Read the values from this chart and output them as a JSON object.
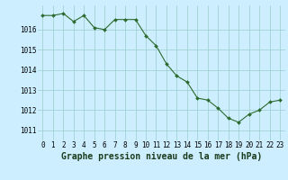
{
  "x": [
    0,
    1,
    2,
    3,
    4,
    5,
    6,
    7,
    8,
    9,
    10,
    11,
    12,
    13,
    14,
    15,
    16,
    17,
    18,
    19,
    20,
    21,
    22,
    23
  ],
  "y": [
    1016.7,
    1016.7,
    1016.8,
    1016.4,
    1016.7,
    1016.1,
    1016.0,
    1016.5,
    1016.5,
    1016.5,
    1015.7,
    1015.2,
    1014.3,
    1013.7,
    1013.4,
    1012.6,
    1012.5,
    1012.1,
    1011.6,
    1011.4,
    1011.8,
    1012.0,
    1012.4,
    1012.5
  ],
  "line_color": "#2d6a2d",
  "marker_color": "#2d6a2d",
  "bg_color": "#cceeff",
  "grid_color": "#99cccc",
  "xlabel": "Graphe pression niveau de la mer (hPa)",
  "xlabel_color": "#1a3a1a",
  "ylim": [
    1010.5,
    1017.2
  ],
  "yticks": [
    1011,
    1012,
    1013,
    1014,
    1015,
    1016
  ],
  "xticks": [
    0,
    1,
    2,
    3,
    4,
    5,
    6,
    7,
    8,
    9,
    10,
    11,
    12,
    13,
    14,
    15,
    16,
    17,
    18,
    19,
    20,
    21,
    22,
    23
  ],
  "tick_fontsize": 5.5,
  "xlabel_fontsize": 7.0
}
